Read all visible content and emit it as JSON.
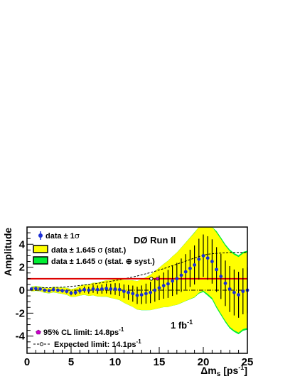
{
  "chart_data": {
    "type": "scatter",
    "ylabel": "Amplitude",
    "xlabel_base": "Δm",
    "xlabel_sub": "s",
    "xlabel_unit": "[ps",
    "xlabel_sup": "-1",
    "xlabel_close": "]",
    "xlim": [
      0,
      25
    ],
    "ylim": [
      -5.5,
      5.5
    ],
    "xticks": [
      0,
      5,
      10,
      15,
      20,
      25
    ],
    "yticks": [
      -4,
      -2,
      0,
      2,
      4
    ],
    "reference_line_y": 1,
    "colors": {
      "marker": "#1a2ed6",
      "stat_band": "#ffff00",
      "syst_band": "#00ee33",
      "reference_line": "#dd0000",
      "cl_marker": "#cc00cc"
    },
    "legend": [
      {
        "symbol": "marker-errorbar",
        "pre": "data ± 1",
        "sym": "σ",
        "post": ""
      },
      {
        "symbol": "yellow-box",
        "pre": "data ± 1.645 ",
        "sym": "σ",
        "post": " (stat.)"
      },
      {
        "symbol": "green-box",
        "pre": "data ± 1.645 ",
        "sym": "σ",
        "post": " (stat. ⊕ syst.)"
      }
    ],
    "experiment": "DØ Run II",
    "luminosity": {
      "base": "1 fb",
      "sup": "-1"
    },
    "cl_limit": {
      "text": "95% CL limit: 14.8ps",
      "sup": "-1",
      "value": 14.8
    },
    "expected_limit": {
      "text": "Expected limit: 14.1ps",
      "sup": "-1",
      "value": 14.1
    },
    "series": [
      {
        "x": [
          0.5,
          1.0,
          1.5,
          2.0,
          2.5,
          3.0,
          3.5,
          4.0,
          4.5,
          5.0,
          5.5,
          6.0,
          6.5,
          7.0,
          7.5,
          8.0,
          8.5,
          9.0,
          9.5,
          10.0,
          10.5,
          11.0,
          11.5,
          12.0,
          12.5,
          13.0,
          13.5,
          14.0,
          14.5,
          15.0,
          15.5,
          16.0,
          16.5,
          17.0,
          17.5,
          18.0,
          18.5,
          19.0,
          19.5,
          20.0,
          20.5,
          21.0,
          21.5,
          22.0,
          22.5,
          23.0,
          23.5,
          24.0,
          24.5,
          25.0
        ],
        "y": [
          0.1,
          0.15,
          0.1,
          0.0,
          -0.05,
          0.05,
          0.0,
          -0.05,
          -0.1,
          -0.25,
          -0.2,
          -0.05,
          0.05,
          0.0,
          0.1,
          0.05,
          0.1,
          0.15,
          0.1,
          0.1,
          0.05,
          -0.1,
          -0.2,
          -0.3,
          -0.45,
          -0.4,
          -0.3,
          -0.2,
          0.0,
          0.2,
          0.4,
          0.55,
          0.8,
          1.0,
          1.3,
          1.6,
          1.9,
          2.2,
          2.7,
          3.0,
          2.8,
          2.5,
          1.8,
          1.2,
          0.6,
          0.1,
          -0.2,
          -0.4,
          -0.1,
          0.0
        ],
        "err": [
          0.12,
          0.12,
          0.12,
          0.13,
          0.13,
          0.14,
          0.15,
          0.16,
          0.18,
          0.2,
          0.22,
          0.25,
          0.27,
          0.3,
          0.33,
          0.36,
          0.4,
          0.43,
          0.47,
          0.51,
          0.55,
          0.6,
          0.65,
          0.7,
          0.75,
          0.81,
          0.87,
          0.93,
          1.0,
          1.07,
          1.14,
          1.22,
          1.3,
          1.38,
          1.46,
          1.54,
          1.62,
          1.7,
          1.78,
          1.85,
          1.9,
          1.93,
          1.95,
          1.97,
          1.98,
          2.0,
          2.0,
          2.0,
          2.0,
          2.0
        ],
        "syst": [
          0.05,
          0.05,
          0.05,
          0.05,
          0.05,
          0.05,
          0.05,
          0.05,
          0.05,
          0.05,
          0.05,
          0.05,
          0.06,
          0.06,
          0.06,
          0.06,
          0.07,
          0.07,
          0.07,
          0.08,
          0.08,
          0.08,
          0.09,
          0.09,
          0.1,
          0.1,
          0.1,
          0.1,
          0.11,
          0.11,
          0.12,
          0.13,
          0.14,
          0.15,
          0.16,
          0.2,
          0.25,
          0.3,
          0.4,
          0.5,
          0.6,
          0.6,
          0.6,
          0.6,
          0.6,
          0.6,
          0.6,
          0.6,
          0.6,
          0.6
        ]
      }
    ]
  }
}
